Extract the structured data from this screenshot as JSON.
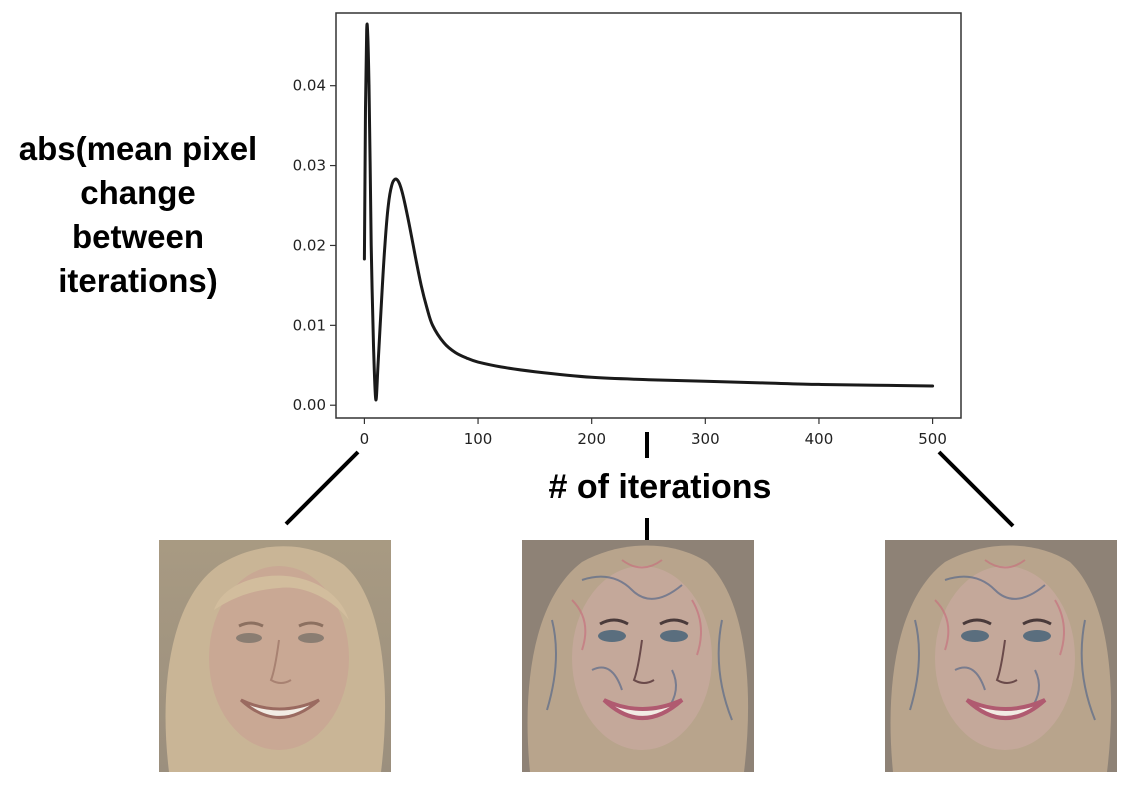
{
  "chart_data": {
    "type": "line",
    "title": "",
    "xlabel": "# of iterations",
    "ylabel_lines": [
      "abs(mean pixel",
      "change",
      "between",
      "iterations)"
    ],
    "xlim": [
      -25,
      525
    ],
    "ylim": [
      -0.0016,
      0.0491
    ],
    "xticks": [
      0,
      100,
      200,
      300,
      400,
      500
    ],
    "yticks": [
      0.0,
      0.01,
      0.02,
      0.03,
      0.04
    ],
    "xtick_labels": [
      "0",
      "100",
      "200",
      "300",
      "400",
      "500"
    ],
    "ytick_labels": [
      "0.00",
      "0.01",
      "0.02",
      "0.03",
      "0.04"
    ],
    "grid": false,
    "series": [
      {
        "color": "#1a1a1a",
        "x": [
          0,
          1,
          2,
          3,
          4,
          5,
          6,
          8,
          10,
          12,
          15,
          18,
          21,
          24,
          27,
          30,
          33,
          36,
          40,
          45,
          50,
          55,
          60,
          70,
          80,
          90,
          100,
          120,
          150,
          200,
          250,
          300,
          350,
          400,
          450,
          500
        ],
        "y": [
          0.0183,
          0.0372,
          0.047,
          0.0462,
          0.04,
          0.0305,
          0.02,
          0.0075,
          0.0007,
          0.005,
          0.013,
          0.02,
          0.025,
          0.0275,
          0.0283,
          0.028,
          0.0268,
          0.025,
          0.0222,
          0.0185,
          0.015,
          0.0122,
          0.01,
          0.0078,
          0.0066,
          0.0059,
          0.0054,
          0.0048,
          0.0042,
          0.0035,
          0.0032,
          0.003,
          0.0028,
          0.0026,
          0.0025,
          0.0024
        ]
      }
    ]
  },
  "thumbnails": [
    {
      "iteration": 0,
      "style": "original"
    },
    {
      "iteration": 250,
      "style": "stylized"
    },
    {
      "iteration": 500,
      "style": "stylized"
    }
  ]
}
